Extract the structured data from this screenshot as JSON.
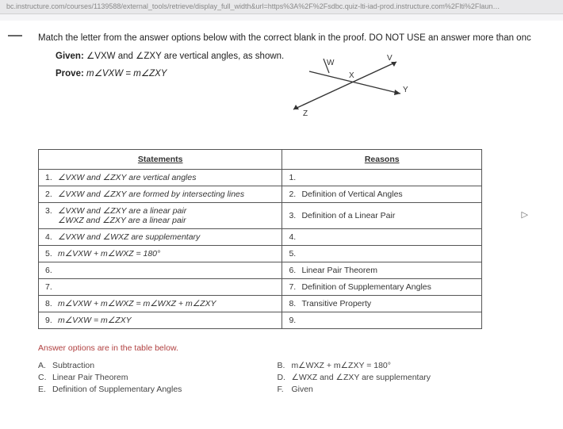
{
  "url_bar": "bc.instructure.com/courses/1139588/external_tools/retrieve/display_full_width&url=https%3A%2F%2Fsdbc.quiz-lti-iad-prod.instructure.com%2Flti%2Flaun…",
  "question": {
    "stem": "Match the letter from the answer options below with the correct blank in the proof. DO NOT USE an answer more than onc",
    "given_label": "Given:",
    "given_text": "∠VXW and ∠ZXY are vertical angles, as shown.",
    "prove_label": "Prove:",
    "prove_text": "m∠VXW = m∠ZXY"
  },
  "diagram": {
    "points": {
      "V": "V",
      "W": "W",
      "X": "X",
      "Y": "Y",
      "Z": "Z"
    },
    "line_color": "#333333",
    "background": "#ffffff"
  },
  "table": {
    "headers": {
      "statements": "Statements",
      "reasons": "Reasons"
    },
    "rows": [
      {
        "n": "1.",
        "stmt": "∠VXW and ∠ZXY are vertical angles",
        "rn": "1.",
        "reason": ""
      },
      {
        "n": "2.",
        "stmt": "∠VXW and ∠ZXY are formed by intersecting lines",
        "rn": "2.",
        "reason": "Definition of Vertical Angles"
      },
      {
        "n": "3.",
        "stmt": "∠VXW and ∠ZXY are a linear pair\n∠WXZ and ∠ZXY are a linear pair",
        "rn": "3.",
        "reason": "Definition of a Linear Pair"
      },
      {
        "n": "4.",
        "stmt": "∠VXW and ∠WXZ are supplementary",
        "rn": "4.",
        "reason": ""
      },
      {
        "n": "5.",
        "stmt": "m∠VXW + m∠WXZ = 180°",
        "rn": "5.",
        "reason": ""
      },
      {
        "n": "6.",
        "stmt": "",
        "rn": "6.",
        "reason": "Linear Pair Theorem"
      },
      {
        "n": "7.",
        "stmt": "",
        "rn": "7.",
        "reason": "Definition of Supplementary Angles"
      },
      {
        "n": "8.",
        "stmt": "m∠VXW + m∠WXZ = m∠WXZ + m∠ZXY",
        "rn": "8.",
        "reason": "Transitive Property"
      },
      {
        "n": "9.",
        "stmt": "m∠VXW = m∠ZXY",
        "rn": "9.",
        "reason": ""
      }
    ]
  },
  "answer_header": "Answer options are in the table below.",
  "options": {
    "left": [
      {
        "letter": "A.",
        "text": "Subtraction"
      },
      {
        "letter": "C.",
        "text": "Linear Pair Theorem"
      },
      {
        "letter": "E.",
        "text": "Definition of Supplementary Angles"
      }
    ],
    "right": [
      {
        "letter": "B.",
        "text": "m∠WXZ + m∠ZXY = 180°"
      },
      {
        "letter": "D.",
        "text": "∠WXZ and ∠ZXY are supplementary"
      },
      {
        "letter": "F.",
        "text": "Given"
      }
    ]
  },
  "cursor_glyph": "▷"
}
